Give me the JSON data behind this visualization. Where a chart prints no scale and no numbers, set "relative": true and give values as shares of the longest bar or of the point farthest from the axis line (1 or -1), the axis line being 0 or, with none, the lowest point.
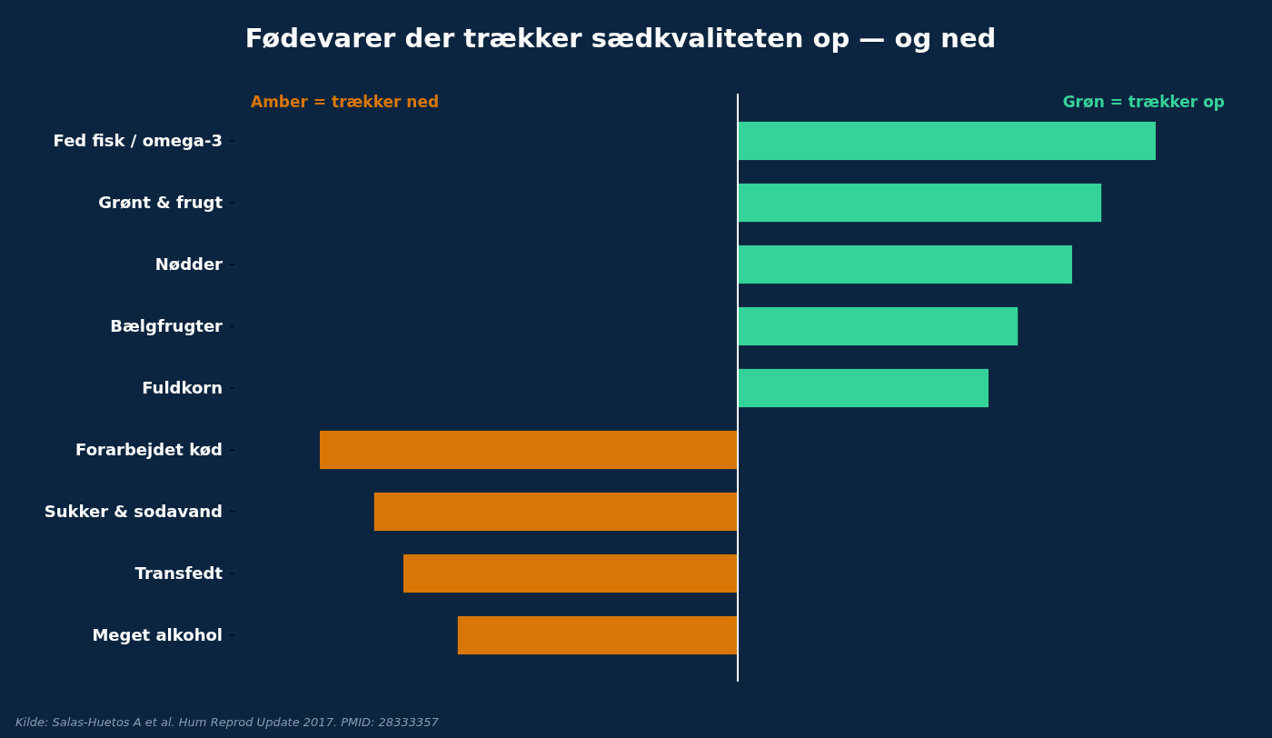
{
  "chart_data": {
    "type": "bar",
    "orientation": "horizontal",
    "relative": true,
    "title": "Fødevarer der trækker sædkvaliteten op — og ned",
    "categories": [
      "Fed fisk / omega-3",
      "Grønt & frugt",
      "Nødder",
      "Bælgfrugter",
      "Fuldkorn",
      "Forarbejdet kød",
      "Sukker & sodavand",
      "Transfedt",
      "Meget alkohol"
    ],
    "values": [
      1,
      0.87,
      0.8,
      0.67,
      0.6,
      -1,
      -0.87,
      -0.8,
      -0.67
    ],
    "colors": [
      "#34d399",
      "#34d399",
      "#34d399",
      "#34d399",
      "#34d399",
      "#d97706",
      "#d97706",
      "#d97706",
      "#d97706"
    ],
    "annotations": [
      "Amber = trækker ned",
      "Grøn = trækker op",
      "Kilde: Salas-Huetos A et al. Hum Reprod Update 2017. PMID: 28333357"
    ],
    "grid": false
  }
}
